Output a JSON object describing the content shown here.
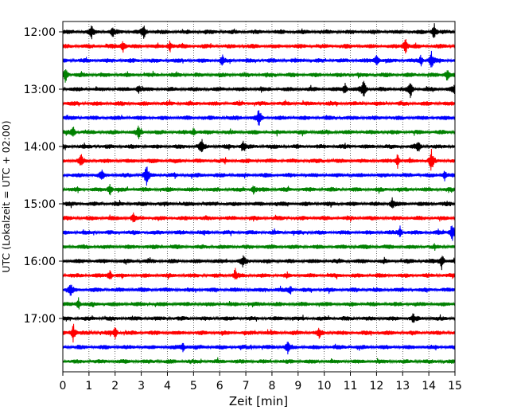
{
  "chart_data": {
    "type": "line",
    "title": "",
    "xlabel": "Zeit  [min]",
    "ylabel": "UTC (Lokalzeit = UTC + 02:00)",
    "xlim": [
      0,
      15
    ],
    "x_ticks": [
      0,
      1,
      2,
      3,
      4,
      5,
      6,
      7,
      8,
      9,
      10,
      11,
      12,
      13,
      14,
      15
    ],
    "x_tick_labels": [
      "0",
      "1",
      "2",
      "3",
      "4",
      "5",
      "6",
      "7",
      "8",
      "9",
      "10",
      "11",
      "12",
      "13",
      "14",
      "15"
    ],
    "y_tick_labels": [
      "12:00",
      "13:00",
      "14:00",
      "15:00",
      "16:00",
      "17:00"
    ],
    "grid": "vertical dotted lines at each minute",
    "trace_interval_min": 15,
    "color_cycle": [
      "#000000",
      "#ff0000",
      "#0000ff",
      "#008000"
    ],
    "traces": [
      {
        "start": "12:00",
        "color": "#000000",
        "events": [
          {
            "x": 1.1,
            "amp": 0.5
          },
          {
            "x": 1.9,
            "amp": 0.45
          },
          {
            "x": 3.1,
            "amp": 0.7
          },
          {
            "x": 14.2,
            "amp": 0.9
          }
        ]
      },
      {
        "start": "12:15",
        "color": "#ff0000",
        "events": [
          {
            "x": 2.3,
            "amp": 0.6
          },
          {
            "x": 4.1,
            "amp": 0.55
          },
          {
            "x": 13.1,
            "amp": 1.0
          }
        ]
      },
      {
        "start": "12:30",
        "color": "#0000ff",
        "events": [
          {
            "x": 6.1,
            "amp": 0.45
          },
          {
            "x": 12.0,
            "amp": 0.7
          },
          {
            "x": 13.7,
            "amp": 0.5
          },
          {
            "x": 14.1,
            "amp": 0.8
          }
        ]
      },
      {
        "start": "12:45",
        "color": "#008000",
        "events": [
          {
            "x": 0.1,
            "amp": 0.9
          },
          {
            "x": 14.7,
            "amp": 0.6
          }
        ]
      },
      {
        "start": "13:00",
        "color": "#000000",
        "events": [
          {
            "x": 2.9,
            "amp": 0.4
          },
          {
            "x": 10.8,
            "amp": 0.5
          },
          {
            "x": 11.5,
            "amp": 1.0
          },
          {
            "x": 13.3,
            "amp": 0.9
          },
          {
            "x": 15.0,
            "amp": 0.5
          }
        ]
      },
      {
        "start": "13:15",
        "color": "#ff0000",
        "events": []
      },
      {
        "start": "13:30",
        "color": "#0000ff",
        "events": [
          {
            "x": 7.5,
            "amp": 1.0
          }
        ]
      },
      {
        "start": "13:45",
        "color": "#008000",
        "events": [
          {
            "x": 0.4,
            "amp": 0.5
          },
          {
            "x": 2.9,
            "amp": 0.6
          },
          {
            "x": 5.0,
            "amp": 0.35
          }
        ]
      },
      {
        "start": "14:00",
        "color": "#000000",
        "events": [
          {
            "x": 5.3,
            "amp": 0.75
          },
          {
            "x": 6.9,
            "amp": 0.55
          },
          {
            "x": 13.6,
            "amp": 0.5
          }
        ]
      },
      {
        "start": "14:15",
        "color": "#ff0000",
        "events": [
          {
            "x": 0.7,
            "amp": 0.5
          },
          {
            "x": 12.8,
            "amp": 0.7
          },
          {
            "x": 14.1,
            "amp": 1.0
          }
        ]
      },
      {
        "start": "14:30",
        "color": "#0000ff",
        "events": [
          {
            "x": 1.5,
            "amp": 0.4
          },
          {
            "x": 3.2,
            "amp": 1.0
          },
          {
            "x": 14.6,
            "amp": 0.5
          }
        ]
      },
      {
        "start": "14:45",
        "color": "#008000",
        "events": [
          {
            "x": 1.8,
            "amp": 0.6
          },
          {
            "x": 7.3,
            "amp": 0.4
          }
        ]
      },
      {
        "start": "15:00",
        "color": "#000000",
        "events": [
          {
            "x": 12.6,
            "amp": 0.6
          }
        ]
      },
      {
        "start": "15:15",
        "color": "#ff0000",
        "events": [
          {
            "x": 2.7,
            "amp": 0.45
          }
        ]
      },
      {
        "start": "15:30",
        "color": "#0000ff",
        "events": [
          {
            "x": 12.9,
            "amp": 0.5
          },
          {
            "x": 14.9,
            "amp": 1.0
          }
        ]
      },
      {
        "start": "15:45",
        "color": "#008000",
        "events": []
      },
      {
        "start": "16:00",
        "color": "#000000",
        "events": [
          {
            "x": 6.9,
            "amp": 0.5
          },
          {
            "x": 14.5,
            "amp": 0.8
          }
        ]
      },
      {
        "start": "16:15",
        "color": "#ff0000",
        "events": [
          {
            "x": 1.8,
            "amp": 0.6
          },
          {
            "x": 6.6,
            "amp": 0.5
          }
        ]
      },
      {
        "start": "16:30",
        "color": "#0000ff",
        "events": [
          {
            "x": 0.3,
            "amp": 0.5
          },
          {
            "x": 8.7,
            "amp": 0.4
          }
        ]
      },
      {
        "start": "16:45",
        "color": "#008000",
        "events": [
          {
            "x": 0.6,
            "amp": 0.55
          }
        ]
      },
      {
        "start": "17:00",
        "color": "#000000",
        "events": [
          {
            "x": 13.4,
            "amp": 0.35
          }
        ]
      },
      {
        "start": "17:15",
        "color": "#ff0000",
        "events": [
          {
            "x": 0.4,
            "amp": 0.9
          },
          {
            "x": 2.0,
            "amp": 0.6
          },
          {
            "x": 9.8,
            "amp": 0.45
          }
        ]
      },
      {
        "start": "17:30",
        "color": "#0000ff",
        "events": [
          {
            "x": 4.6,
            "amp": 0.4
          },
          {
            "x": 8.6,
            "amp": 0.6
          }
        ]
      },
      {
        "start": "17:45",
        "color": "#008000",
        "events": []
      }
    ]
  }
}
